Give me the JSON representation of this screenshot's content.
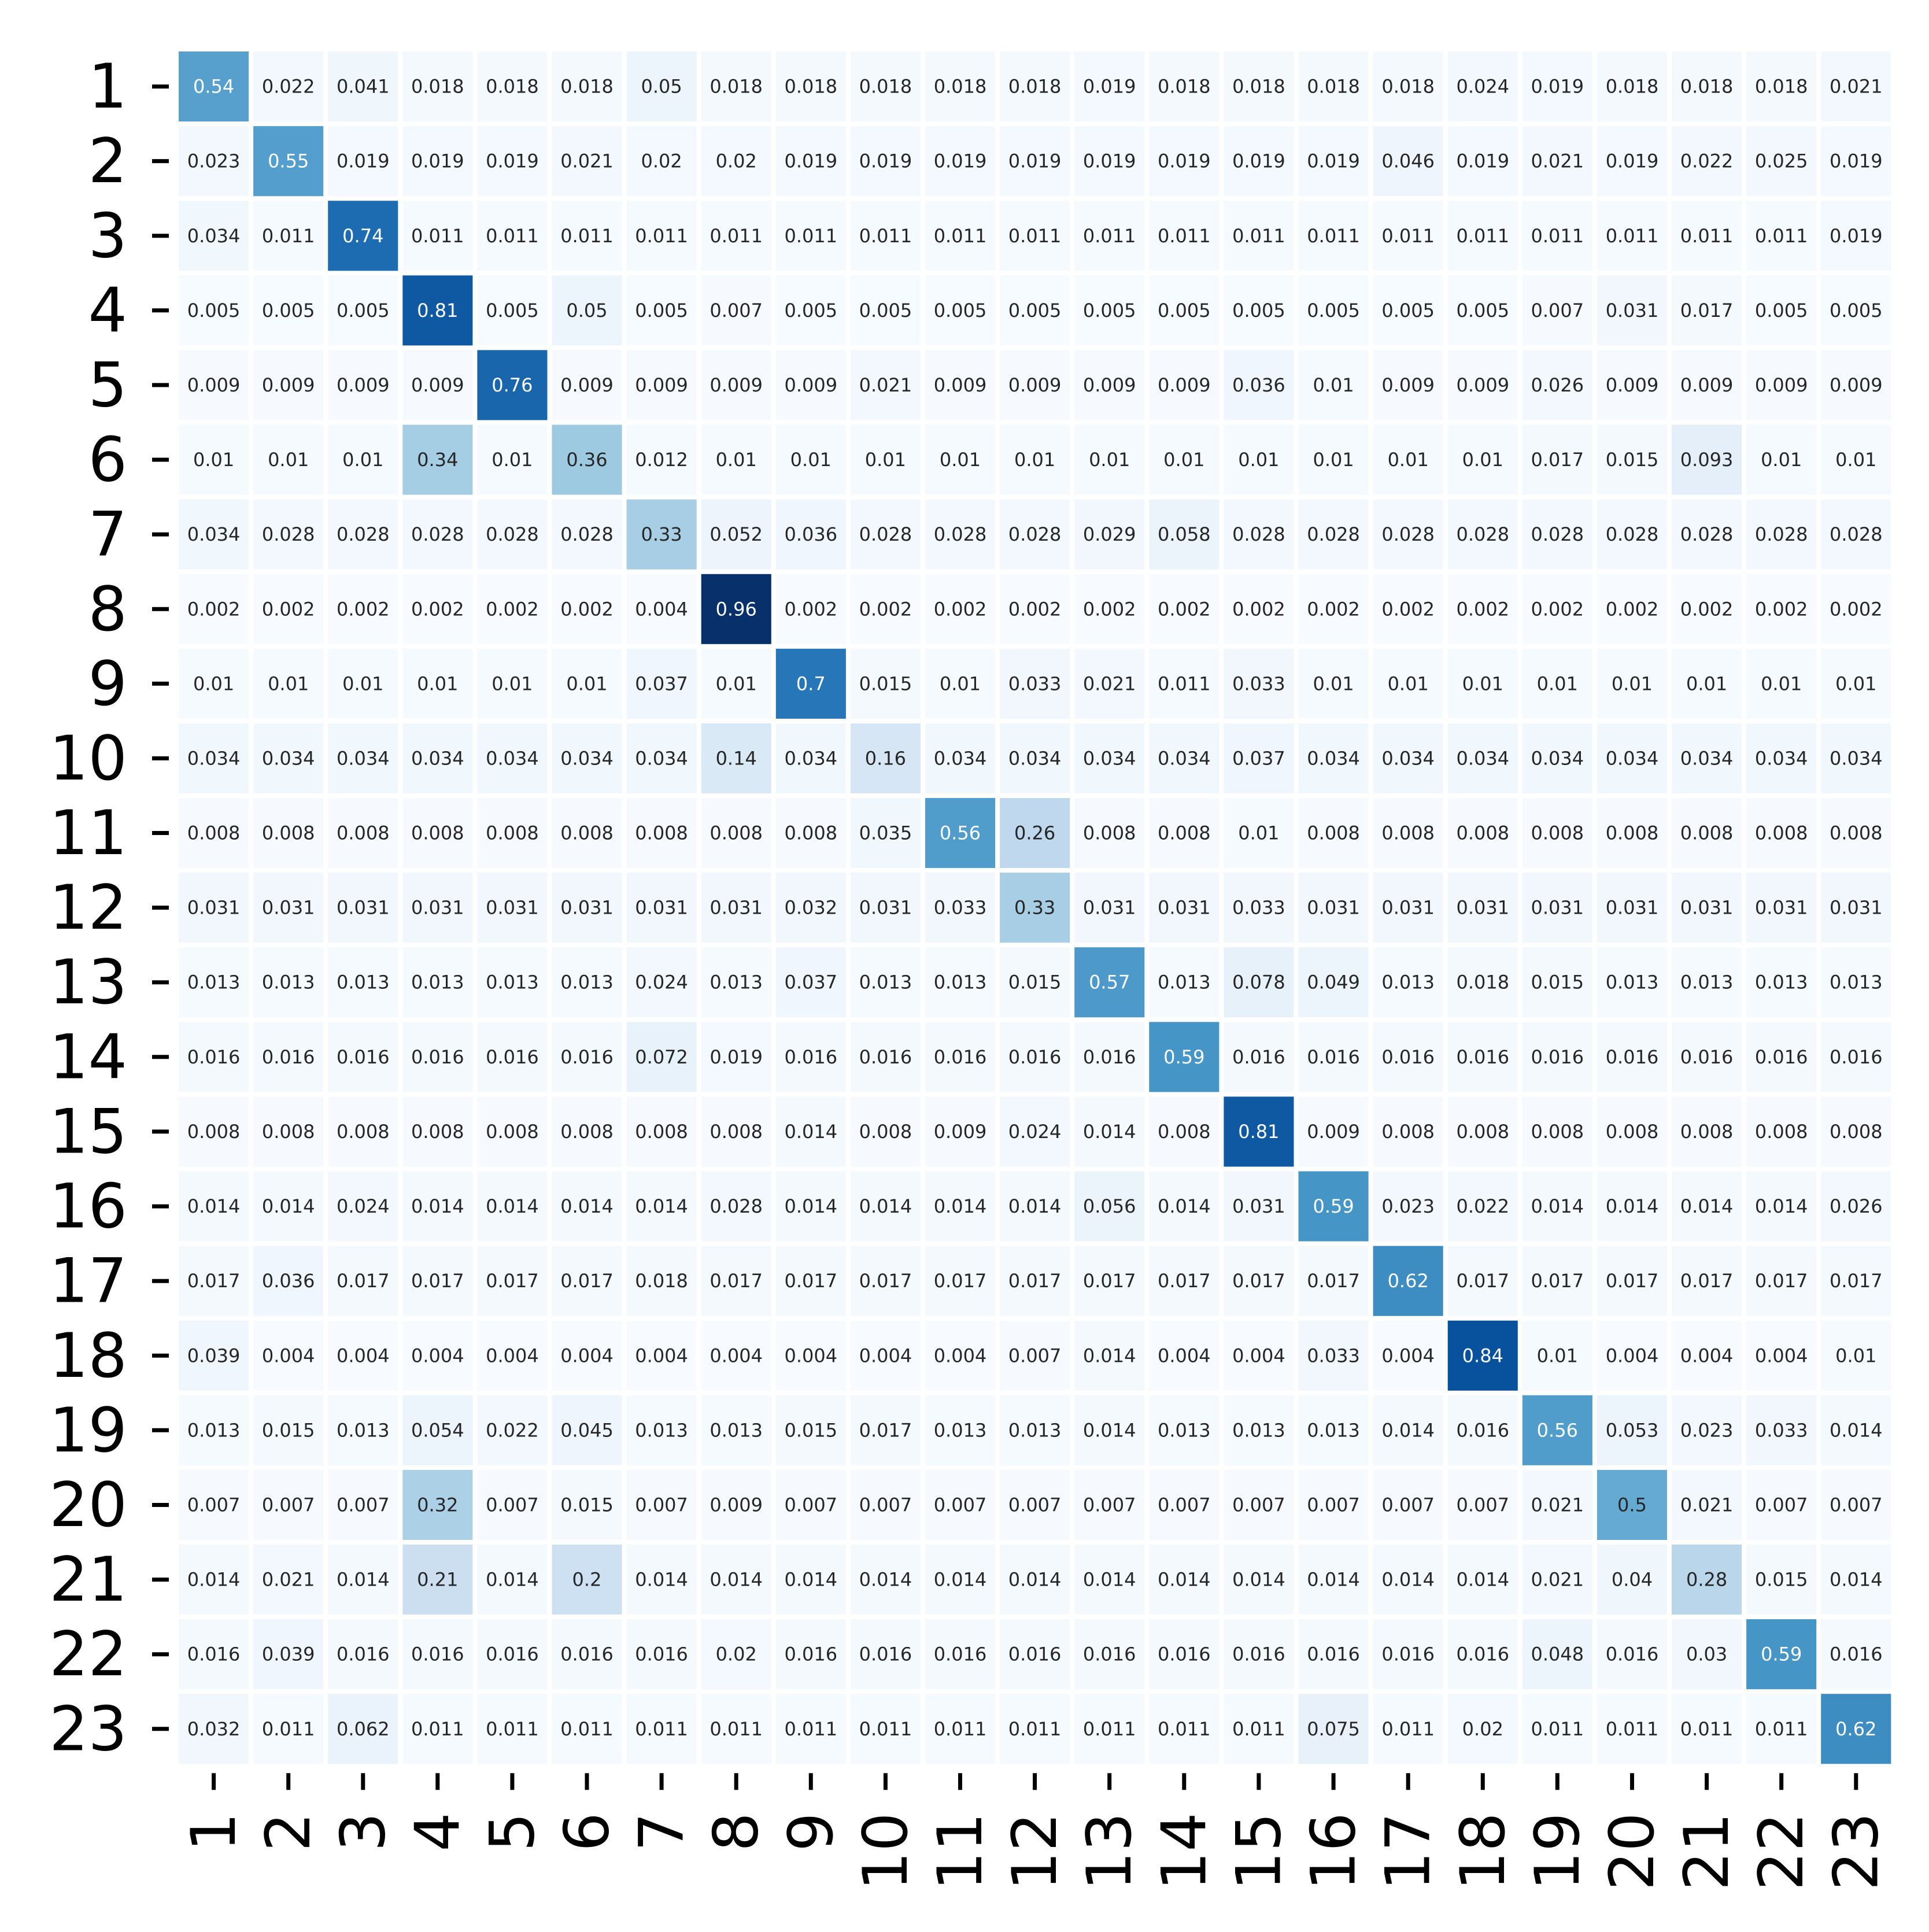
{
  "chart_data": {
    "type": "heatmap",
    "title": "",
    "xlabel": "",
    "ylabel": "",
    "colormap": "Blues",
    "vmin": 0.002,
    "vmax": 0.96,
    "colorbar": false,
    "row_labels": [
      "1",
      "2",
      "3",
      "4",
      "5",
      "6",
      "7",
      "8",
      "9",
      "10",
      "11",
      "12",
      "13",
      "14",
      "15",
      "16",
      "17",
      "18",
      "19",
      "20",
      "21",
      "22",
      "23"
    ],
    "col_labels": [
      "1",
      "2",
      "3",
      "4",
      "5",
      "6",
      "7",
      "8",
      "9",
      "10",
      "11",
      "12",
      "13",
      "14",
      "15",
      "16",
      "17",
      "18",
      "19",
      "20",
      "21",
      "22",
      "23"
    ],
    "values": [
      [
        0.54,
        0.022,
        0.041,
        0.018,
        0.018,
        0.018,
        0.05,
        0.018,
        0.018,
        0.018,
        0.018,
        0.018,
        0.019,
        0.018,
        0.018,
        0.018,
        0.018,
        0.024,
        0.019,
        0.018,
        0.018,
        0.018,
        0.021
      ],
      [
        0.023,
        0.55,
        0.019,
        0.019,
        0.019,
        0.021,
        0.02,
        0.02,
        0.019,
        0.019,
        0.019,
        0.019,
        0.019,
        0.019,
        0.019,
        0.019,
        0.046,
        0.019,
        0.021,
        0.019,
        0.022,
        0.025,
        0.019
      ],
      [
        0.034,
        0.011,
        0.74,
        0.011,
        0.011,
        0.011,
        0.011,
        0.011,
        0.011,
        0.011,
        0.011,
        0.011,
        0.011,
        0.011,
        0.011,
        0.011,
        0.011,
        0.011,
        0.011,
        0.011,
        0.011,
        0.011,
        0.019
      ],
      [
        0.005,
        0.005,
        0.005,
        0.81,
        0.005,
        0.05,
        0.005,
        0.007,
        0.005,
        0.005,
        0.005,
        0.005,
        0.005,
        0.005,
        0.005,
        0.005,
        0.005,
        0.005,
        0.007,
        0.031,
        0.017,
        0.005,
        0.005
      ],
      [
        0.009,
        0.009,
        0.009,
        0.009,
        0.76,
        0.009,
        0.009,
        0.009,
        0.009,
        0.021,
        0.009,
        0.009,
        0.009,
        0.009,
        0.036,
        0.01,
        0.009,
        0.009,
        0.026,
        0.009,
        0.009,
        0.009,
        0.009
      ],
      [
        0.01,
        0.01,
        0.01,
        0.34,
        0.01,
        0.36,
        0.012,
        0.01,
        0.01,
        0.01,
        0.01,
        0.01,
        0.01,
        0.01,
        0.01,
        0.01,
        0.01,
        0.01,
        0.017,
        0.015,
        0.093,
        0.01,
        0.01
      ],
      [
        0.034,
        0.028,
        0.028,
        0.028,
        0.028,
        0.028,
        0.33,
        0.052,
        0.036,
        0.028,
        0.028,
        0.028,
        0.029,
        0.058,
        0.028,
        0.028,
        0.028,
        0.028,
        0.028,
        0.028,
        0.028,
        0.028,
        0.028
      ],
      [
        0.002,
        0.002,
        0.002,
        0.002,
        0.002,
        0.002,
        0.004,
        0.96,
        0.002,
        0.002,
        0.002,
        0.002,
        0.002,
        0.002,
        0.002,
        0.002,
        0.002,
        0.002,
        0.002,
        0.002,
        0.002,
        0.002,
        0.002
      ],
      [
        0.01,
        0.01,
        0.01,
        0.01,
        0.01,
        0.01,
        0.037,
        0.01,
        0.7,
        0.015,
        0.01,
        0.033,
        0.021,
        0.011,
        0.033,
        0.01,
        0.01,
        0.01,
        0.01,
        0.01,
        0.01,
        0.01,
        0.01
      ],
      [
        0.034,
        0.034,
        0.034,
        0.034,
        0.034,
        0.034,
        0.034,
        0.14,
        0.034,
        0.16,
        0.034,
        0.034,
        0.034,
        0.034,
        0.037,
        0.034,
        0.034,
        0.034,
        0.034,
        0.034,
        0.034,
        0.034,
        0.034
      ],
      [
        0.008,
        0.008,
        0.008,
        0.008,
        0.008,
        0.008,
        0.008,
        0.008,
        0.008,
        0.035,
        0.56,
        0.26,
        0.008,
        0.008,
        0.01,
        0.008,
        0.008,
        0.008,
        0.008,
        0.008,
        0.008,
        0.008,
        0.008
      ],
      [
        0.031,
        0.031,
        0.031,
        0.031,
        0.031,
        0.031,
        0.031,
        0.031,
        0.032,
        0.031,
        0.033,
        0.33,
        0.031,
        0.031,
        0.033,
        0.031,
        0.031,
        0.031,
        0.031,
        0.031,
        0.031,
        0.031,
        0.031
      ],
      [
        0.013,
        0.013,
        0.013,
        0.013,
        0.013,
        0.013,
        0.024,
        0.013,
        0.037,
        0.013,
        0.013,
        0.015,
        0.57,
        0.013,
        0.078,
        0.049,
        0.013,
        0.018,
        0.015,
        0.013,
        0.013,
        0.013,
        0.013
      ],
      [
        0.016,
        0.016,
        0.016,
        0.016,
        0.016,
        0.016,
        0.072,
        0.019,
        0.016,
        0.016,
        0.016,
        0.016,
        0.016,
        0.59,
        0.016,
        0.016,
        0.016,
        0.016,
        0.016,
        0.016,
        0.016,
        0.016,
        0.016
      ],
      [
        0.008,
        0.008,
        0.008,
        0.008,
        0.008,
        0.008,
        0.008,
        0.008,
        0.014,
        0.008,
        0.009,
        0.024,
        0.014,
        0.008,
        0.81,
        0.009,
        0.008,
        0.008,
        0.008,
        0.008,
        0.008,
        0.008,
        0.008
      ],
      [
        0.014,
        0.014,
        0.024,
        0.014,
        0.014,
        0.014,
        0.014,
        0.028,
        0.014,
        0.014,
        0.014,
        0.014,
        0.056,
        0.014,
        0.031,
        0.59,
        0.023,
        0.022,
        0.014,
        0.014,
        0.014,
        0.014,
        0.026
      ],
      [
        0.017,
        0.036,
        0.017,
        0.017,
        0.017,
        0.017,
        0.018,
        0.017,
        0.017,
        0.017,
        0.017,
        0.017,
        0.017,
        0.017,
        0.017,
        0.017,
        0.62,
        0.017,
        0.017,
        0.017,
        0.017,
        0.017,
        0.017
      ],
      [
        0.039,
        0.004,
        0.004,
        0.004,
        0.004,
        0.004,
        0.004,
        0.004,
        0.004,
        0.004,
        0.004,
        0.007,
        0.014,
        0.004,
        0.004,
        0.033,
        0.004,
        0.84,
        0.01,
        0.004,
        0.004,
        0.004,
        0.01
      ],
      [
        0.013,
        0.015,
        0.013,
        0.054,
        0.022,
        0.045,
        0.013,
        0.013,
        0.015,
        0.017,
        0.013,
        0.013,
        0.014,
        0.013,
        0.013,
        0.013,
        0.014,
        0.016,
        0.56,
        0.053,
        0.023,
        0.033,
        0.014
      ],
      [
        0.007,
        0.007,
        0.007,
        0.32,
        0.007,
        0.015,
        0.007,
        0.009,
        0.007,
        0.007,
        0.007,
        0.007,
        0.007,
        0.007,
        0.007,
        0.007,
        0.007,
        0.007,
        0.021,
        0.5,
        0.021,
        0.007,
        0.007
      ],
      [
        0.014,
        0.021,
        0.014,
        0.21,
        0.014,
        0.2,
        0.014,
        0.014,
        0.014,
        0.014,
        0.014,
        0.014,
        0.014,
        0.014,
        0.014,
        0.014,
        0.014,
        0.014,
        0.021,
        0.04,
        0.28,
        0.015,
        0.014
      ],
      [
        0.016,
        0.039,
        0.016,
        0.016,
        0.016,
        0.016,
        0.016,
        0.02,
        0.016,
        0.016,
        0.016,
        0.016,
        0.016,
        0.016,
        0.016,
        0.016,
        0.016,
        0.016,
        0.048,
        0.016,
        0.03,
        0.59,
        0.016
      ],
      [
        0.032,
        0.011,
        0.062,
        0.011,
        0.011,
        0.011,
        0.011,
        0.011,
        0.011,
        0.011,
        0.011,
        0.011,
        0.011,
        0.011,
        0.011,
        0.075,
        0.011,
        0.02,
        0.011,
        0.011,
        0.011,
        0.011,
        0.62
      ]
    ],
    "annotations": true
  }
}
